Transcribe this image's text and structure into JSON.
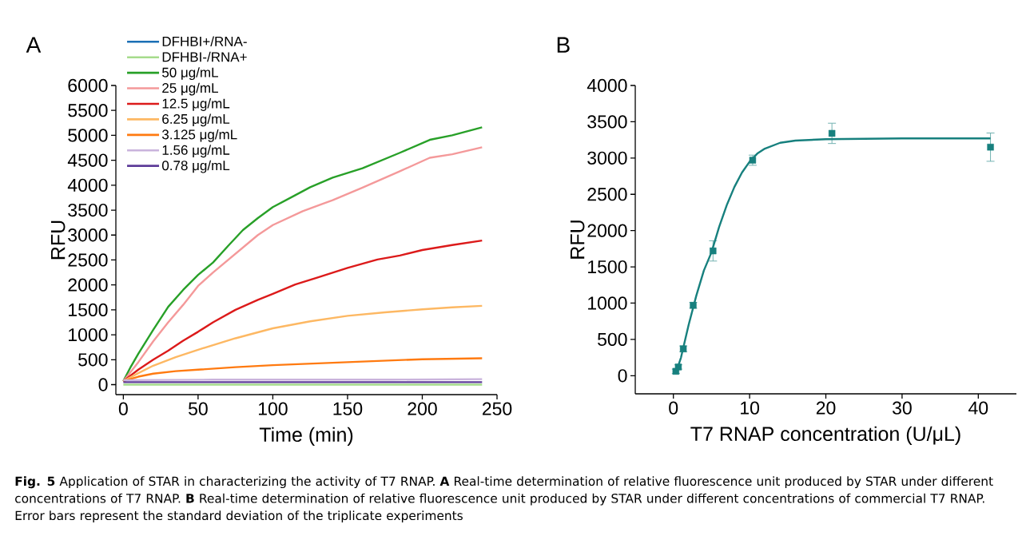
{
  "chart_data": [
    {
      "type": "line",
      "title": "A",
      "xlabel": "Time (min)",
      "ylabel": "RFU",
      "xlim": [
        -5,
        250
      ],
      "ylim": [
        -200,
        6000
      ],
      "xticks": [
        0,
        50,
        100,
        150,
        200,
        250
      ],
      "yticks": [
        0,
        500,
        1000,
        1500,
        2000,
        2500,
        3000,
        3500,
        4000,
        4500,
        5000,
        5500,
        6000
      ],
      "legend": "top left",
      "marker": "none",
      "line_style": "solid",
      "series": [
        {
          "name": "DFHBI+/RNA-",
          "color": "#1b6fb5",
          "values": [
            null
          ]
        },
        {
          "name": "DFHBI-/RNA+",
          "color": "#a6dc8c",
          "x": [
            0,
            60,
            120,
            180,
            240
          ],
          "values": [
            0,
            0,
            0,
            0,
            0
          ]
        },
        {
          "name": "50 μg/mL",
          "color": "#28a028",
          "x": [
            0,
            5,
            10,
            20,
            30,
            40,
            50,
            60,
            70,
            80,
            90,
            100,
            115,
            125,
            140,
            160,
            185,
            205,
            220,
            240
          ],
          "values": [
            70,
            360,
            620,
            1100,
            1560,
            1900,
            2200,
            2450,
            2780,
            3100,
            3340,
            3560,
            3800,
            3960,
            4150,
            4340,
            4650,
            4910,
            5000,
            5160
          ]
        },
        {
          "name": "25 μg/mL",
          "color": "#f4999a",
          "x": [
            0,
            10,
            20,
            30,
            40,
            50,
            60,
            70,
            80,
            90,
            100,
            120,
            140,
            160,
            185,
            205,
            220,
            240
          ],
          "values": [
            70,
            450,
            870,
            1250,
            1600,
            1980,
            2250,
            2500,
            2750,
            3000,
            3200,
            3480,
            3700,
            3950,
            4280,
            4550,
            4620,
            4760
          ]
        },
        {
          "name": "12.5 μg/mL",
          "color": "#dc1a1a",
          "x": [
            0,
            10,
            20,
            30,
            40,
            50,
            60,
            75,
            90,
            100,
            115,
            130,
            150,
            170,
            185,
            200,
            220,
            240
          ],
          "values": [
            70,
            300,
            500,
            680,
            880,
            1060,
            1250,
            1500,
            1700,
            1820,
            2010,
            2150,
            2340,
            2510,
            2590,
            2700,
            2800,
            2890
          ]
        },
        {
          "name": "6.25 μg/mL",
          "color": "#fdb863",
          "x": [
            0,
            10,
            20,
            35,
            50,
            75,
            100,
            125,
            150,
            175,
            200,
            220,
            240
          ],
          "values": [
            70,
            230,
            380,
            550,
            700,
            930,
            1130,
            1270,
            1380,
            1450,
            1510,
            1550,
            1580
          ]
        },
        {
          "name": "3.125 μg/mL",
          "color": "#ff7a10",
          "x": [
            0,
            10,
            20,
            35,
            50,
            75,
            100,
            150,
            200,
            240
          ],
          "values": [
            70,
            160,
            220,
            270,
            300,
            350,
            390,
            450,
            510,
            530
          ]
        },
        {
          "name": "1.56 μg/mL",
          "color": "#c9b3dc",
          "x": [
            0,
            60,
            120,
            180,
            240
          ],
          "values": [
            90,
            100,
            100,
            100,
            110
          ]
        },
        {
          "name": "0.78 μg/mL",
          "color": "#5e3c99",
          "x": [
            0,
            60,
            120,
            180,
            240
          ],
          "values": [
            50,
            50,
            50,
            50,
            50
          ]
        }
      ],
      "annotations": [
        "**Fig. 5** Application of STAR in characterizing the activity of T7 RNAP. **A** Real-time determination of relative fluorescence unit produced by STAR under different concentrations of T7 RNAP. **B** Real-time determination of relative fluorescence unit produced by STAR under different concentrations of commercial T7 RNAP. Error bars represent the standard deviation of the triplicate experiments"
      ]
    },
    {
      "type": "scatter",
      "title": "B",
      "xlabel": "T7 RNAP concentration (U/μL)",
      "ylabel": "RFU",
      "xlim": [
        -5,
        45
      ],
      "ylim": [
        -250,
        4000
      ],
      "xticks": [
        0,
        10,
        20,
        30,
        40
      ],
      "yticks": [
        0,
        500,
        1000,
        1500,
        2000,
        2500,
        3000,
        3500,
        4000
      ],
      "series": [
        {
          "type": "scatter",
          "marker": "square",
          "color": "#17807e",
          "x": [
            0.325,
            0.65,
            1.3,
            2.6,
            5.2,
            10.4,
            20.8,
            41.6
          ],
          "values": [
            60,
            120,
            370,
            970,
            1720,
            2970,
            3340,
            3150
          ],
          "errors": [
            30,
            30,
            40,
            40,
            140,
            70,
            140,
            195
          ]
        },
        {
          "type": "line",
          "marker": "none",
          "color": "#17807e",
          "x": [
            0.3,
            1,
            2,
            3,
            4,
            5,
            6,
            7,
            8,
            9,
            10,
            11,
            12,
            14,
            16,
            20,
            30,
            41.6
          ],
          "values": [
            30,
            250,
            700,
            1100,
            1450,
            1700,
            2050,
            2350,
            2600,
            2800,
            2950,
            3060,
            3130,
            3210,
            3240,
            3260,
            3270,
            3270
          ]
        }
      ]
    }
  ]
}
